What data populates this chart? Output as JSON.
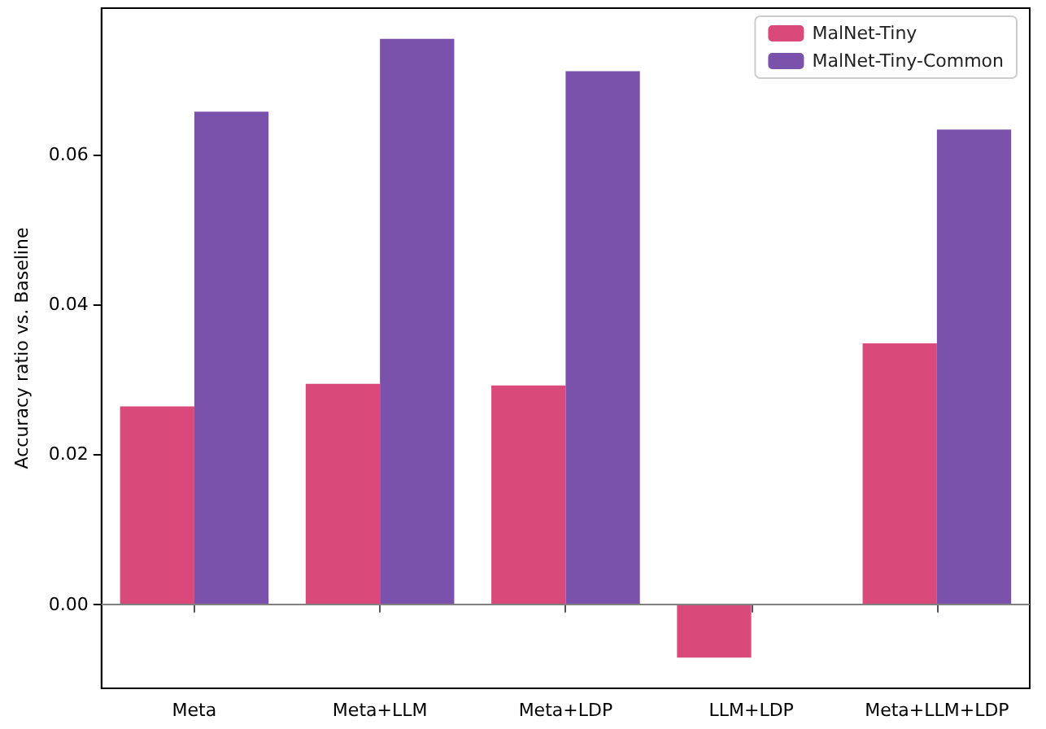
{
  "chart_data": {
    "type": "bar",
    "ylabel": "Accuracy ratio vs. Baseline",
    "categories": [
      "Meta",
      "Meta+LLM",
      "Meta+LDP",
      "LLM+LDP",
      "Meta+LLM+LDP"
    ],
    "series": [
      {
        "name": "MalNet-Tiny",
        "color": "#d94a7b",
        "values": [
          0.0264,
          0.0294,
          0.0292,
          -0.0071,
          0.0348
        ]
      },
      {
        "name": "MalNet-Tiny-Common",
        "color": "#7b52ab",
        "values": [
          0.0657,
          0.0754,
          0.0711,
          0,
          0.0633
        ]
      }
    ],
    "ylim": [
      -0.0112,
      0.0795
    ],
    "yticks": [
      {
        "value": 0,
        "label": "0.00"
      },
      {
        "value": 0.02,
        "label": "0.02"
      },
      {
        "value": 0.04,
        "label": "0.04"
      },
      {
        "value": 0.06,
        "label": "0.06"
      }
    ],
    "ref_lines": [
      {
        "axis": "y",
        "value": 0,
        "color": "#808080"
      }
    ],
    "legend": "top right",
    "grid": false
  }
}
